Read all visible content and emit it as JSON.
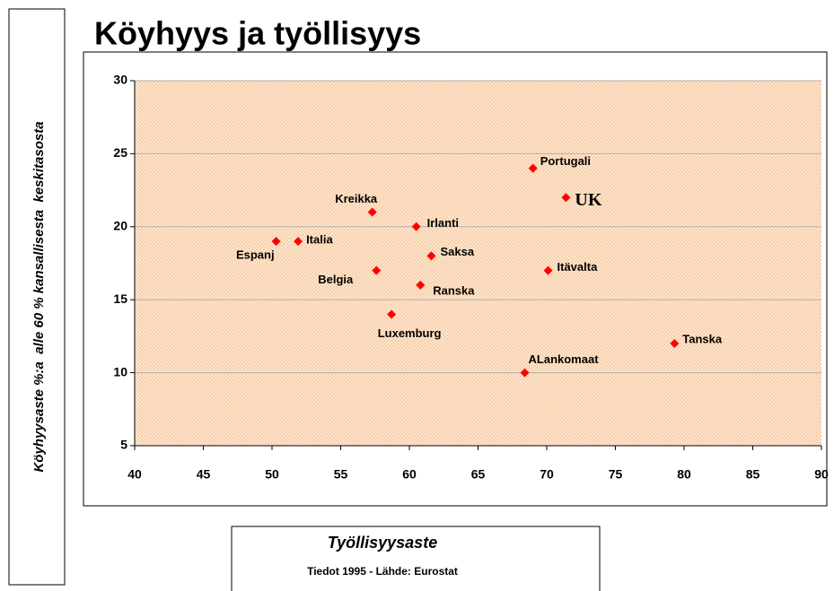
{
  "chart_data": {
    "type": "scatter",
    "title": "Köyhyys ja työllisyys",
    "x_label": "Työllisyysaste",
    "y_label": "Köyhyysaste %:a  alle 60 % kansallisesta  keskitasosta",
    "note": "Tiedot 1995 - Lähde: Eurostat",
    "series": [
      {
        "color": "#ff0000",
        "point_labels": [
          "Portugali",
          "UK",
          "Kreikka",
          "Irlanti",
          "Espanj",
          "Italia",
          "Saksa",
          "Itävalta",
          "Belgia",
          "Ranska",
          "Luxemburg",
          "ALankomaat",
          "Tanska"
        ],
        "x": [
          69,
          71.4,
          57.3,
          60.5,
          50.3,
          51.9,
          61.6,
          70.1,
          57.6,
          60.8,
          58.7,
          68.4,
          79.3
        ],
        "values": [
          24,
          22,
          21,
          20,
          19,
          19,
          18,
          17,
          17,
          16,
          14,
          10,
          12
        ]
      }
    ],
    "xlim": [
      40,
      90
    ],
    "xticks": [
      40,
      45,
      50,
      55,
      60,
      65,
      70,
      75,
      80,
      85,
      90
    ],
    "ylim": [
      5,
      30
    ],
    "yticks": [
      5,
      10,
      15,
      20,
      25,
      30
    ],
    "grid": true
  }
}
